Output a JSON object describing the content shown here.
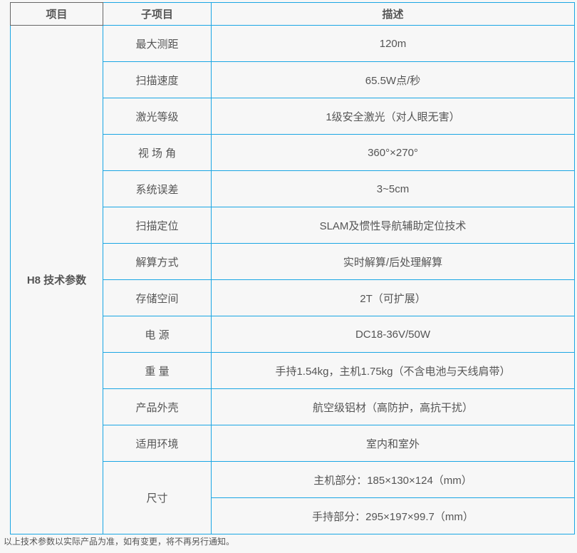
{
  "headers": [
    "项目",
    "子项目",
    "描述"
  ],
  "group": "H8 技术参数",
  "rows": [
    {
      "name": "最大测距",
      "desc": "120m"
    },
    {
      "name": "扫描速度",
      "desc": "65.5W点/秒"
    },
    {
      "name": "激光等级",
      "desc": "1级安全激光（对人眼无害）"
    },
    {
      "name": "视 场 角",
      "desc": "360°×270°"
    },
    {
      "name": "系统误差",
      "desc": "3~5cm"
    },
    {
      "name": "扫描定位",
      "desc": "SLAM及惯性导航辅助定位技术"
    },
    {
      "name": "解算方式",
      "desc": "实时解算/后处理解算"
    },
    {
      "name": "存储空间",
      "desc": "2T（可扩展）"
    },
    {
      "name": "电 源",
      "desc": "DC18-36V/50W"
    },
    {
      "name": "重 量",
      "desc": "手持1.54kg，主机1.75kg（不含电池与天线肩带）"
    },
    {
      "name": "产品外壳",
      "desc": "航空级铝材（高防护，高抗干扰）"
    },
    {
      "name": "适用环境",
      "desc": "室内和室外"
    }
  ],
  "size": {
    "name": "尺寸",
    "desc": [
      "主机部分：185×130×124（mm）",
      "手持部分：295×197×99.7（mm）"
    ]
  },
  "footnote": "以上技术参数以实际产品为准，如有变更，将不再另行通知。",
  "colors": {
    "border": "#1aa6e4",
    "text": "#555555",
    "background": "#f7f7f7"
  }
}
